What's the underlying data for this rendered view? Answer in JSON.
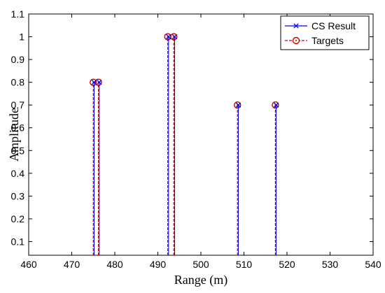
{
  "chart_data": {
    "type": "stem",
    "title": "",
    "xlabel": "Range (m)",
    "ylabel": "Amplitude",
    "xlim": [
      460,
      540
    ],
    "ylim": [
      0.04,
      1.1
    ],
    "xticks": [
      460,
      470,
      480,
      490,
      500,
      510,
      520,
      530,
      540
    ],
    "yticks": [
      0.1,
      0.2,
      0.3,
      0.4,
      0.5,
      0.6,
      0.7,
      0.8,
      0.9,
      1,
      1.1
    ],
    "grid": false,
    "legend_position": "top-right",
    "series": [
      {
        "name": "CS Result",
        "color": "#0000ff",
        "line_style": "solid",
        "marker": "x",
        "points": [
          {
            "x": 475,
            "y": 0.8
          },
          {
            "x": 476.2,
            "y": 0.8
          },
          {
            "x": 492.3,
            "y": 1.0
          },
          {
            "x": 493.7,
            "y": 1.0
          },
          {
            "x": 508.5,
            "y": 0.7
          },
          {
            "x": 517.3,
            "y": 0.7
          }
        ]
      },
      {
        "name": "Targets",
        "color": "#cc0000",
        "line_style": "dashed",
        "marker": "circle-dot",
        "points": [
          {
            "x": 475,
            "y": 0.8
          },
          {
            "x": 476.2,
            "y": 0.8
          },
          {
            "x": 492.3,
            "y": 1.0
          },
          {
            "x": 493.7,
            "y": 1.0
          },
          {
            "x": 508.5,
            "y": 0.7
          },
          {
            "x": 517.3,
            "y": 0.7
          }
        ]
      }
    ]
  }
}
